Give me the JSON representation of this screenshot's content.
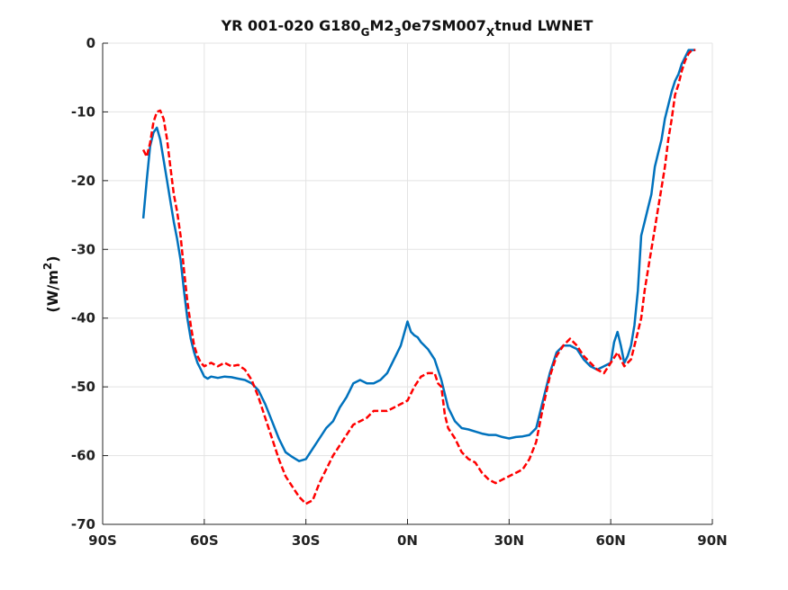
{
  "chart_data": {
    "type": "line",
    "title": "YR 001-020 G180",
    "title_parts": [
      {
        "text": "YR 001-020 G180",
        "style": "normal"
      },
      {
        "text": "G",
        "style": "sub"
      },
      {
        "text": "M2",
        "style": "normal"
      },
      {
        "text": "3",
        "style": "sub"
      },
      {
        "text": "0e7SM007",
        "style": "normal"
      },
      {
        "text": "X",
        "style": "sub"
      },
      {
        "text": "tnud LWNET",
        "style": "normal"
      }
    ],
    "ylabel": "(W/m²)",
    "ylabel_parts": [
      {
        "text": "(W/m",
        "style": "normal"
      },
      {
        "text": "2",
        "style": "sup"
      },
      {
        "text": ")",
        "style": "normal"
      }
    ],
    "xlabel": "",
    "xlim": [
      -90,
      90
    ],
    "ylim": [
      -70,
      0
    ],
    "x_ticks": [
      -90,
      -60,
      -30,
      0,
      30,
      60,
      90
    ],
    "x_tick_labels": [
      "90S",
      "60S",
      "30S",
      "0N",
      "30N",
      "60N",
      "90N"
    ],
    "y_ticks": [
      0,
      -10,
      -20,
      -30,
      -40,
      -50,
      -60,
      -70
    ],
    "y_tick_labels": [
      "0",
      "-10",
      "-20",
      "-30",
      "-40",
      "-50",
      "-60",
      "-70"
    ],
    "grid": true,
    "series": [
      {
        "color": "#0072BD",
        "dash": "solid",
        "points": [
          [
            -78,
            -25.5
          ],
          [
            -77,
            -20
          ],
          [
            -76,
            -15
          ],
          [
            -75,
            -13
          ],
          [
            -74,
            -12.3
          ],
          [
            -73,
            -14
          ],
          [
            -72,
            -17
          ],
          [
            -71,
            -20
          ],
          [
            -70,
            -23
          ],
          [
            -69,
            -26
          ],
          [
            -68,
            -28.5
          ],
          [
            -67,
            -31.5
          ],
          [
            -66,
            -36
          ],
          [
            -65,
            -40
          ],
          [
            -64,
            -43
          ],
          [
            -63,
            -45
          ],
          [
            -62,
            -46.5
          ],
          [
            -61,
            -47.5
          ],
          [
            -60,
            -48.5
          ],
          [
            -59,
            -48.8
          ],
          [
            -58,
            -48.5
          ],
          [
            -56,
            -48.7
          ],
          [
            -54,
            -48.5
          ],
          [
            -52,
            -48.6
          ],
          [
            -50,
            -48.8
          ],
          [
            -48,
            -49
          ],
          [
            -46,
            -49.5
          ],
          [
            -44,
            -50.5
          ],
          [
            -42,
            -52.5
          ],
          [
            -40,
            -55
          ],
          [
            -38,
            -57.5
          ],
          [
            -36,
            -59.5
          ],
          [
            -34,
            -60.2
          ],
          [
            -32,
            -60.8
          ],
          [
            -30,
            -60.5
          ],
          [
            -28,
            -59
          ],
          [
            -26,
            -57.5
          ],
          [
            -24,
            -56
          ],
          [
            -22,
            -55
          ],
          [
            -20,
            -53
          ],
          [
            -18,
            -51.5
          ],
          [
            -16,
            -49.5
          ],
          [
            -14,
            -49
          ],
          [
            -12,
            -49.5
          ],
          [
            -10,
            -49.5
          ],
          [
            -8,
            -49
          ],
          [
            -6,
            -48
          ],
          [
            -4,
            -46
          ],
          [
            -2,
            -44
          ],
          [
            0,
            -40.5
          ],
          [
            1,
            -42
          ],
          [
            2,
            -42.5
          ],
          [
            3,
            -42.8
          ],
          [
            4,
            -43.5
          ],
          [
            6,
            -44.5
          ],
          [
            8,
            -46
          ],
          [
            10,
            -49
          ],
          [
            12,
            -53
          ],
          [
            14,
            -55
          ],
          [
            16,
            -56
          ],
          [
            18,
            -56.2
          ],
          [
            20,
            -56.5
          ],
          [
            22,
            -56.8
          ],
          [
            24,
            -57
          ],
          [
            26,
            -57
          ],
          [
            28,
            -57.3
          ],
          [
            30,
            -57.5
          ],
          [
            32,
            -57.3
          ],
          [
            34,
            -57.2
          ],
          [
            36,
            -57
          ],
          [
            38,
            -56
          ],
          [
            40,
            -52
          ],
          [
            42,
            -48
          ],
          [
            44,
            -45
          ],
          [
            46,
            -44
          ],
          [
            48,
            -44
          ],
          [
            50,
            -44.5
          ],
          [
            52,
            -46
          ],
          [
            54,
            -47
          ],
          [
            56,
            -47.5
          ],
          [
            58,
            -47
          ],
          [
            60,
            -46.5
          ],
          [
            61,
            -43.5
          ],
          [
            62,
            -42
          ],
          [
            63,
            -44
          ],
          [
            64,
            -46.5
          ],
          [
            65,
            -45.5
          ],
          [
            66,
            -44
          ],
          [
            67,
            -41
          ],
          [
            68,
            -36
          ],
          [
            69,
            -28
          ],
          [
            70,
            -26
          ],
          [
            71,
            -24
          ],
          [
            72,
            -22
          ],
          [
            73,
            -18
          ],
          [
            74,
            -16
          ],
          [
            75,
            -14
          ],
          [
            76,
            -11
          ],
          [
            77,
            -9
          ],
          [
            78,
            -7
          ],
          [
            79,
            -5.5
          ],
          [
            80,
            -4.5
          ],
          [
            81,
            -3
          ],
          [
            82,
            -2
          ],
          [
            83,
            -1
          ],
          [
            84,
            -1
          ],
          [
            85,
            -1
          ]
        ]
      },
      {
        "color": "#FF0000",
        "dash": "dashed",
        "points": [
          [
            -78,
            -15.5
          ],
          [
            -77,
            -16.5
          ],
          [
            -76,
            -14.5
          ],
          [
            -75,
            -11.5
          ],
          [
            -74,
            -10
          ],
          [
            -73,
            -9.8
          ],
          [
            -72,
            -11
          ],
          [
            -71,
            -14
          ],
          [
            -70,
            -18
          ],
          [
            -69,
            -22
          ],
          [
            -68,
            -24.5
          ],
          [
            -67,
            -28
          ],
          [
            -66,
            -33
          ],
          [
            -65,
            -37.5
          ],
          [
            -64,
            -41
          ],
          [
            -63,
            -44
          ],
          [
            -62,
            -45.5
          ],
          [
            -61,
            -46.5
          ],
          [
            -60,
            -47
          ],
          [
            -58,
            -46.5
          ],
          [
            -56,
            -47
          ],
          [
            -54,
            -46.5
          ],
          [
            -52,
            -47
          ],
          [
            -50,
            -46.8
          ],
          [
            -48,
            -47.5
          ],
          [
            -46,
            -49
          ],
          [
            -44,
            -51.5
          ],
          [
            -42,
            -54.5
          ],
          [
            -40,
            -57.5
          ],
          [
            -38,
            -60.5
          ],
          [
            -36,
            -63
          ],
          [
            -34,
            -64.5
          ],
          [
            -32,
            -66
          ],
          [
            -30,
            -67
          ],
          [
            -28,
            -66.5
          ],
          [
            -26,
            -64
          ],
          [
            -24,
            -62
          ],
          [
            -22,
            -60
          ],
          [
            -20,
            -58.5
          ],
          [
            -18,
            -57
          ],
          [
            -16,
            -55.5
          ],
          [
            -14,
            -55
          ],
          [
            -12,
            -54.5
          ],
          [
            -10,
            -53.5
          ],
          [
            -8,
            -53.5
          ],
          [
            -6,
            -53.5
          ],
          [
            -4,
            -53
          ],
          [
            -2,
            -52.5
          ],
          [
            0,
            -52
          ],
          [
            2,
            -50
          ],
          [
            4,
            -48.5
          ],
          [
            6,
            -48
          ],
          [
            8,
            -48
          ],
          [
            9,
            -49.5
          ],
          [
            10,
            -50
          ],
          [
            11,
            -54
          ],
          [
            12,
            -56
          ],
          [
            14,
            -57.5
          ],
          [
            16,
            -59.5
          ],
          [
            18,
            -60.5
          ],
          [
            20,
            -61
          ],
          [
            22,
            -62.5
          ],
          [
            24,
            -63.5
          ],
          [
            26,
            -64
          ],
          [
            28,
            -63.5
          ],
          [
            30,
            -63
          ],
          [
            32,
            -62.5
          ],
          [
            34,
            -62
          ],
          [
            36,
            -60.5
          ],
          [
            38,
            -58
          ],
          [
            40,
            -53
          ],
          [
            42,
            -48.5
          ],
          [
            44,
            -45.5
          ],
          [
            46,
            -44
          ],
          [
            48,
            -43
          ],
          [
            50,
            -44
          ],
          [
            52,
            -45.5
          ],
          [
            54,
            -46.5
          ],
          [
            56,
            -47.5
          ],
          [
            58,
            -48
          ],
          [
            60,
            -46.5
          ],
          [
            62,
            -45
          ],
          [
            64,
            -47
          ],
          [
            66,
            -46
          ],
          [
            67,
            -44
          ],
          [
            68,
            -42
          ],
          [
            69,
            -40
          ],
          [
            70,
            -36
          ],
          [
            71,
            -33
          ],
          [
            72,
            -30
          ],
          [
            73,
            -27
          ],
          [
            74,
            -24
          ],
          [
            75,
            -21
          ],
          [
            76,
            -18
          ],
          [
            77,
            -14
          ],
          [
            78,
            -11
          ],
          [
            79,
            -7.5
          ],
          [
            80,
            -6
          ],
          [
            81,
            -4
          ],
          [
            82,
            -2.5
          ],
          [
            83,
            -1.5
          ],
          [
            84,
            -1
          ],
          [
            85,
            -1
          ]
        ]
      }
    ]
  }
}
